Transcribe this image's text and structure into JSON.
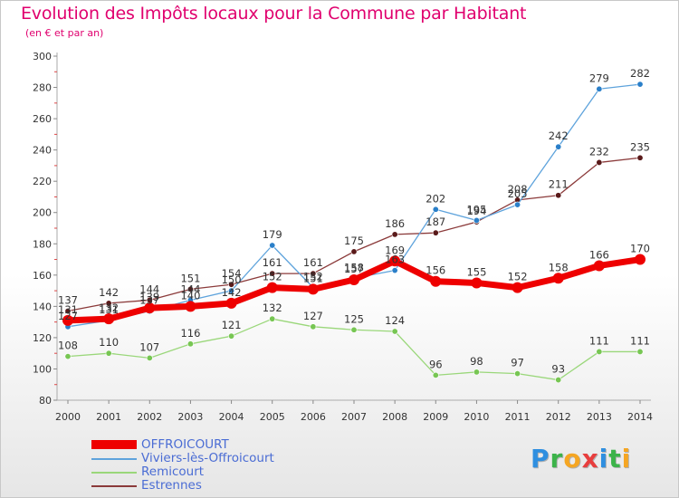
{
  "title": "Evolution des Impôts locaux pour la Commune par Habitant",
  "subtitle": "(en € et par an)",
  "brand": {
    "text": "Proxiti",
    "letters": [
      {
        "ch": "P",
        "color": "#2f8fe0"
      },
      {
        "ch": "r",
        "color": "#3cb34a"
      },
      {
        "ch": "o",
        "color": "#f5a623"
      },
      {
        "ch": "x",
        "color": "#e83e3e"
      },
      {
        "ch": "i",
        "color": "#2f8fe0"
      },
      {
        "ch": "t",
        "color": "#3cb34a"
      },
      {
        "ch": "i",
        "color": "#f5a623"
      }
    ]
  },
  "chart_data": {
    "type": "line",
    "title": "Evolution des Impôts locaux pour la Commune par Habitant",
    "ylabel": "(en € et par an)",
    "x": [
      "2000",
      "2001",
      "2002",
      "2003",
      "2004",
      "2005",
      "2006",
      "2007",
      "2008",
      "2009",
      "2010",
      "2011",
      "2012",
      "2013",
      "2014"
    ],
    "ylim": [
      80,
      300
    ],
    "yticks": [
      80,
      100,
      120,
      140,
      160,
      180,
      200,
      220,
      240,
      260,
      280,
      300
    ],
    "grid": false,
    "legend_position": "bottom-left",
    "series": [
      {
        "name": "Estrennes",
        "color": "#8b3a3a",
        "marker": "#5a1a1a",
        "width": 1.3,
        "values": [
          137,
          142,
          144,
          151,
          154,
          161,
          161,
          175,
          186,
          187,
          194,
          208,
          211,
          232,
          235
        ],
        "labels": [
          "137",
          "142",
          "144",
          "151",
          "154",
          "161",
          "161",
          "175",
          "186",
          "187",
          "194",
          "208",
          "211",
          "232",
          "235"
        ]
      },
      {
        "name": "Viviers-lès-Offroicourt",
        "color": "#5ea3dc",
        "marker": "#2a7fc9",
        "width": 1.3,
        "values": [
          127,
          131,
          137,
          144,
          150,
          179,
          152,
          158,
          163,
          202,
          195,
          205,
          242,
          279,
          282
        ],
        "labels": [
          "127",
          "131",
          "137",
          "144",
          "150",
          "179",
          "152",
          "158",
          "163",
          "202",
          "195",
          "205",
          "242",
          "279",
          "282"
        ]
      },
      {
        "name": "Remicourt",
        "color": "#9ad77a",
        "marker": "#77c653",
        "width": 1.3,
        "values": [
          108,
          110,
          107,
          116,
          121,
          132,
          127,
          125,
          124,
          96,
          98,
          97,
          93,
          111,
          111
        ],
        "labels": [
          "108",
          "110",
          "107",
          "116",
          "121",
          "132",
          "127",
          "125",
          "124",
          "96",
          "98",
          "97",
          "93",
          "111",
          "111"
        ]
      },
      {
        "name": "OFFROICOURT",
        "color": "#ee0000",
        "marker": "#ee0000",
        "width": 7,
        "values": [
          131,
          132,
          139,
          140,
          142,
          152,
          151,
          157,
          169,
          156,
          155,
          152,
          158,
          166,
          170
        ],
        "labels": [
          "131",
          "132",
          "139",
          "140",
          "142",
          "152",
          "151",
          "157",
          "169",
          "156",
          "155",
          "152",
          "158",
          "166",
          "170"
        ]
      }
    ],
    "legend_order": [
      "OFFROICOURT",
      "Viviers-lès-Offroicourt",
      "Remicourt",
      "Estrennes"
    ]
  }
}
